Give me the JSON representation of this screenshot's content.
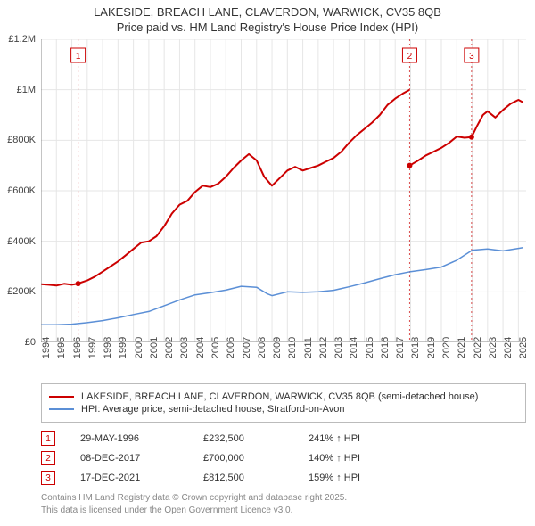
{
  "title_line1": "LAKESIDE, BREACH LANE, CLAVERDON, WARWICK, CV35 8QB",
  "title_line2": "Price paid vs. HM Land Registry's House Price Index (HPI)",
  "chart": {
    "type": "line",
    "background_color": "#ffffff",
    "grid_color": "#e6e6e6",
    "axis_color": "#888888",
    "tick_fontsize": 11,
    "xlim": [
      1994,
      2025.5
    ],
    "ylim": [
      0,
      1200000
    ],
    "yticks": [
      {
        "v": 0,
        "label": "£0"
      },
      {
        "v": 200000,
        "label": "£200K"
      },
      {
        "v": 400000,
        "label": "£400K"
      },
      {
        "v": 600000,
        "label": "£600K"
      },
      {
        "v": 800000,
        "label": "£800K"
      },
      {
        "v": 1000000,
        "label": "£1M"
      },
      {
        "v": 1200000,
        "label": "£1.2M"
      }
    ],
    "xticks": [
      1994,
      1995,
      1996,
      1997,
      1998,
      1999,
      2000,
      2001,
      2002,
      2003,
      2004,
      2005,
      2006,
      2007,
      2008,
      2009,
      2010,
      2011,
      2012,
      2013,
      2014,
      2015,
      2016,
      2017,
      2018,
      2019,
      2020,
      2021,
      2022,
      2023,
      2024,
      2025
    ],
    "series": [
      {
        "name": "property",
        "label": "LAKESIDE, BREACH LANE, CLAVERDON, WARWICK, CV35 8QB (semi-detached house)",
        "color": "#cc0000",
        "line_width": 2,
        "data": [
          [
            1994.0,
            230000
          ],
          [
            1994.5,
            228000
          ],
          [
            1995.0,
            225000
          ],
          [
            1995.5,
            232000
          ],
          [
            1996.0,
            228000
          ],
          [
            1996.4,
            232500
          ],
          [
            1997.0,
            245000
          ],
          [
            1997.5,
            260000
          ],
          [
            1998.0,
            280000
          ],
          [
            1998.5,
            300000
          ],
          [
            1999.0,
            320000
          ],
          [
            1999.5,
            345000
          ],
          [
            2000.0,
            370000
          ],
          [
            2000.5,
            395000
          ],
          [
            2001.0,
            400000
          ],
          [
            2001.5,
            420000
          ],
          [
            2002.0,
            460000
          ],
          [
            2002.5,
            510000
          ],
          [
            2003.0,
            545000
          ],
          [
            2003.5,
            560000
          ],
          [
            2004.0,
            595000
          ],
          [
            2004.5,
            620000
          ],
          [
            2005.0,
            615000
          ],
          [
            2005.5,
            628000
          ],
          [
            2006.0,
            655000
          ],
          [
            2006.5,
            690000
          ],
          [
            2007.0,
            720000
          ],
          [
            2007.5,
            745000
          ],
          [
            2008.0,
            720000
          ],
          [
            2008.5,
            655000
          ],
          [
            2009.0,
            620000
          ],
          [
            2009.5,
            650000
          ],
          [
            2010.0,
            680000
          ],
          [
            2010.5,
            695000
          ],
          [
            2011.0,
            680000
          ],
          [
            2011.5,
            690000
          ],
          [
            2012.0,
            700000
          ],
          [
            2012.5,
            715000
          ],
          [
            2013.0,
            730000
          ],
          [
            2013.5,
            755000
          ],
          [
            2014.0,
            790000
          ],
          [
            2014.5,
            820000
          ],
          [
            2015.0,
            845000
          ],
          [
            2015.5,
            870000
          ],
          [
            2016.0,
            900000
          ],
          [
            2016.5,
            940000
          ],
          [
            2017.0,
            965000
          ],
          [
            2017.5,
            985000
          ],
          [
            2017.94,
            1000000
          ]
        ]
      },
      {
        "name": "property_seg2",
        "color": "#cc0000",
        "line_width": 2,
        "data": [
          [
            2017.94,
            700000
          ],
          [
            2018.5,
            720000
          ],
          [
            2019.0,
            740000
          ],
          [
            2019.5,
            755000
          ],
          [
            2020.0,
            770000
          ],
          [
            2020.5,
            790000
          ],
          [
            2021.0,
            815000
          ],
          [
            2021.5,
            810000
          ],
          [
            2021.96,
            812500
          ]
        ]
      },
      {
        "name": "property_seg3",
        "color": "#cc0000",
        "line_width": 2,
        "data": [
          [
            2021.96,
            812500
          ],
          [
            2022.3,
            855000
          ],
          [
            2022.7,
            900000
          ],
          [
            2023.0,
            915000
          ],
          [
            2023.5,
            890000
          ],
          [
            2024.0,
            920000
          ],
          [
            2024.5,
            945000
          ],
          [
            2025.0,
            960000
          ],
          [
            2025.3,
            950000
          ]
        ]
      },
      {
        "name": "hpi",
        "label": "HPI: Average price, semi-detached house, Stratford-on-Avon",
        "color": "#5b8fd6",
        "line_width": 1.5,
        "data": [
          [
            1994.0,
            70000
          ],
          [
            1995.0,
            70000
          ],
          [
            1996.0,
            72000
          ],
          [
            1997.0,
            78000
          ],
          [
            1998.0,
            86000
          ],
          [
            1999.0,
            97000
          ],
          [
            2000.0,
            110000
          ],
          [
            2001.0,
            122000
          ],
          [
            2002.0,
            145000
          ],
          [
            2003.0,
            168000
          ],
          [
            2004.0,
            188000
          ],
          [
            2005.0,
            197000
          ],
          [
            2006.0,
            207000
          ],
          [
            2007.0,
            222000
          ],
          [
            2008.0,
            218000
          ],
          [
            2008.7,
            192000
          ],
          [
            2009.0,
            185000
          ],
          [
            2010.0,
            200000
          ],
          [
            2011.0,
            198000
          ],
          [
            2012.0,
            200000
          ],
          [
            2013.0,
            206000
          ],
          [
            2014.0,
            220000
          ],
          [
            2015.0,
            235000
          ],
          [
            2016.0,
            252000
          ],
          [
            2017.0,
            268000
          ],
          [
            2018.0,
            280000
          ],
          [
            2019.0,
            288000
          ],
          [
            2020.0,
            298000
          ],
          [
            2021.0,
            325000
          ],
          [
            2022.0,
            365000
          ],
          [
            2023.0,
            370000
          ],
          [
            2024.0,
            362000
          ],
          [
            2025.0,
            372000
          ],
          [
            2025.3,
            375000
          ]
        ]
      }
    ],
    "sale_markers": [
      {
        "n": "1",
        "x": 1996.41,
        "y": 232500,
        "color": "#cc0000"
      },
      {
        "n": "2",
        "x": 2017.94,
        "y": 700000,
        "color": "#cc0000"
      },
      {
        "n": "3",
        "x": 2021.96,
        "y": 812500,
        "color": "#cc0000"
      }
    ],
    "marker_line_color": "#cc0000",
    "marker_line_dash": "2,3",
    "marker_badge_border": "#cc0000",
    "marker_badge_fill": "#ffffff",
    "marker_badge_text_color": "#cc0000",
    "marker_dot_radius": 3
  },
  "legend": {
    "border_color": "#bbbbbb",
    "items": [
      {
        "color": "#cc0000",
        "label": "LAKESIDE, BREACH LANE, CLAVERDON, WARWICK, CV35 8QB (semi-detached house)"
      },
      {
        "color": "#5b8fd6",
        "label": "HPI: Average price, semi-detached house, Stratford-on-Avon"
      }
    ]
  },
  "sales": [
    {
      "n": "1",
      "date": "29-MAY-1996",
      "price": "£232,500",
      "hpi": "241% ↑ HPI"
    },
    {
      "n": "2",
      "date": "08-DEC-2017",
      "price": "£700,000",
      "hpi": "140% ↑ HPI"
    },
    {
      "n": "3",
      "date": "17-DEC-2021",
      "price": "£812,500",
      "hpi": "159% ↑ HPI"
    }
  ],
  "footnote_line1": "Contains HM Land Registry data © Crown copyright and database right 2025.",
  "footnote_line2": "This data is licensed under the Open Government Licence v3.0.",
  "colors": {
    "text": "#333333",
    "footnote": "#888888"
  }
}
